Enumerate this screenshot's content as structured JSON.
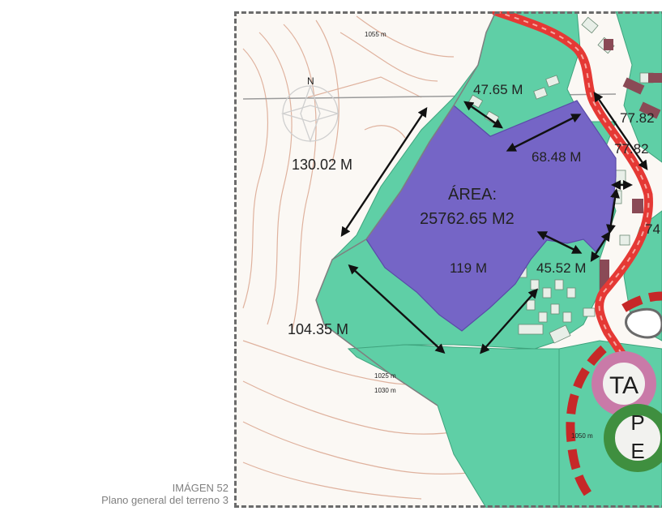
{
  "caption": {
    "line1": "IMÁGEN 52",
    "line2": "Plano general del terreno 3"
  },
  "map": {
    "area_label": "ÁREA:",
    "area_value": "25762.65 M2",
    "measurements": {
      "m_47_65": "47.65 M",
      "m_68_48": "68.48 M",
      "m_77_82_a": "77.82",
      "m_77_82_b": "77.82",
      "m_130_02": "130.02 M",
      "m_119": "119 M",
      "m_45_52": "45.52 M",
      "m_104_35": "104.35 M",
      "m_74": "74"
    },
    "contour_labels": {
      "c1": "1025 m",
      "c2": "1030 m",
      "c3": "1050 m",
      "c4": "1055 m"
    },
    "north_label": "N",
    "zone_labels": {
      "ta": "TA",
      "p": "P",
      "e": "E"
    },
    "colors": {
      "green_zone": "#5fcfa6",
      "purple_area": "#7565c6",
      "road_red": "#e53935",
      "ta_ring": "#c97aa8",
      "pe_ring": "#3f8f3f",
      "contour": "#d9a189"
    }
  }
}
